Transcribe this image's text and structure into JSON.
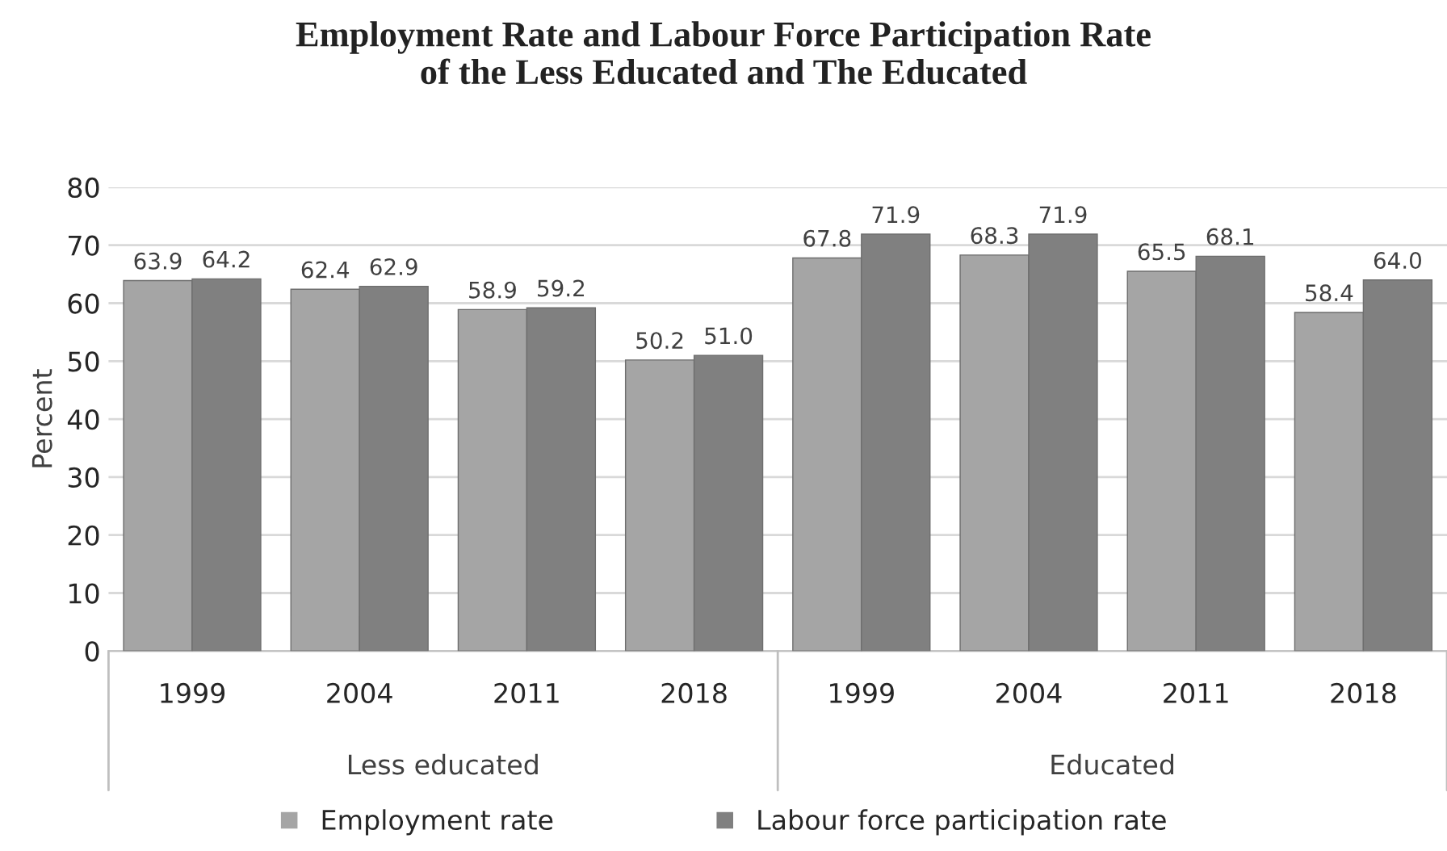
{
  "chart_data": {
    "type": "bar",
    "title": "Employment Rate and Labour Force Participation Rate\nof the Less Educated and The Educated",
    "ylabel": "Percent",
    "categories": [
      "1999",
      "2004",
      "2011",
      "2018",
      "1999",
      "2004",
      "2011",
      "2018"
    ],
    "series": [
      {
        "name": "Employment rate",
        "color": "#a5a5a5",
        "values": [
          63.9,
          62.4,
          58.9,
          50.2,
          67.8,
          68.3,
          65.5,
          58.4
        ],
        "value_labels": [
          "63.9",
          "62.4",
          "58.9",
          "50.2",
          "67.8",
          "68.3",
          "65.5",
          "58.4"
        ]
      },
      {
        "name": "Labour force participation rate",
        "color": "#808080",
        "values": [
          64.2,
          62.9,
          59.2,
          51.0,
          71.9,
          71.9,
          68.1,
          64.0
        ],
        "value_labels": [
          "64.2",
          "62.9",
          "59.2",
          "51.0",
          "71.9",
          "71.9",
          "68.1",
          "64.0"
        ]
      }
    ],
    "annotations": [
      "Less educated",
      "Educated"
    ],
    "ylim": [
      0,
      80
    ],
    "yticks": [
      0,
      10,
      20,
      30,
      40,
      50,
      60,
      70,
      80
    ],
    "grid": "y",
    "legend": "bottom"
  }
}
